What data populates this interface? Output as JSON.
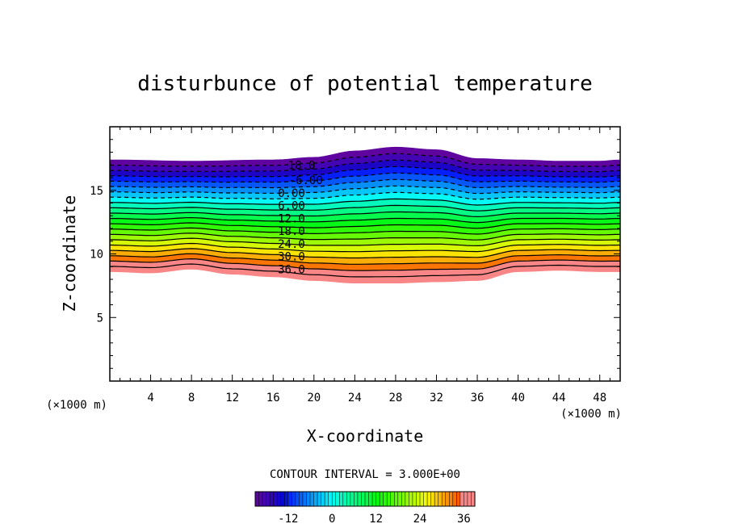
{
  "chart_data": {
    "type": "contour",
    "title": "disturbunce of potential temperature",
    "xlabel": "X-coordinate",
    "ylabel": "Z-coordinate",
    "x_unit": "(×1000 m)",
    "y_unit": "(×1000 m)",
    "xlim": [
      0,
      50
    ],
    "ylim": [
      0,
      20
    ],
    "x_ticks": [
      "4",
      "8",
      "12",
      "16",
      "20",
      "24",
      "28",
      "32",
      "36",
      "40",
      "44",
      "48"
    ],
    "x_tick_values": [
      4,
      8,
      12,
      16,
      20,
      24,
      28,
      32,
      36,
      40,
      44,
      48
    ],
    "y_ticks": [
      "5",
      "10",
      "15"
    ],
    "y_tick_values": [
      5,
      10,
      15
    ],
    "contour_interval_text": "CONTOUR INTERVAL = 3.000E+00",
    "contour_interval": 3,
    "level_min": -21,
    "level_max": 39,
    "domain_bottom": {
      "x": [
        0,
        4,
        8,
        12,
        16,
        20,
        24,
        28,
        32,
        36,
        40,
        44,
        48,
        50
      ],
      "z": [
        8.6,
        8.5,
        8.8,
        8.4,
        8.2,
        7.9,
        7.7,
        7.7,
        7.8,
        7.9,
        8.6,
        8.7,
        8.6,
        8.6
      ]
    },
    "domain_top": {
      "x": [
        0,
        8,
        16,
        20,
        24,
        28,
        32,
        36,
        40,
        44,
        48,
        50
      ],
      "z": [
        17.4,
        17.3,
        17.4,
        17.6,
        18.1,
        18.4,
        18.2,
        17.5,
        17.4,
        17.3,
        17.3,
        17.4
      ]
    },
    "contour_labels": [
      {
        "text": "18.0",
        "x": 18.8,
        "z": 17.0
      },
      {
        "text": "-6.00",
        "x": 19.2,
        "z": 15.8
      },
      {
        "text": "0.00",
        "x": 17.8,
        "z": 14.8
      },
      {
        "text": "6.00",
        "x": 17.8,
        "z": 13.8
      },
      {
        "text": "12.0",
        "x": 17.8,
        "z": 12.8
      },
      {
        "text": "18.0",
        "x": 17.8,
        "z": 11.8
      },
      {
        "text": "24.0",
        "x": 17.8,
        "z": 10.8
      },
      {
        "text": "30.0",
        "x": 17.8,
        "z": 9.8
      },
      {
        "text": "36.0",
        "x": 17.8,
        "z": 8.8
      }
    ],
    "colorbar": {
      "ticks": [
        "-12",
        "0",
        "12",
        "24",
        "36"
      ],
      "tick_values": [
        -12,
        0,
        12,
        24,
        36
      ]
    }
  }
}
